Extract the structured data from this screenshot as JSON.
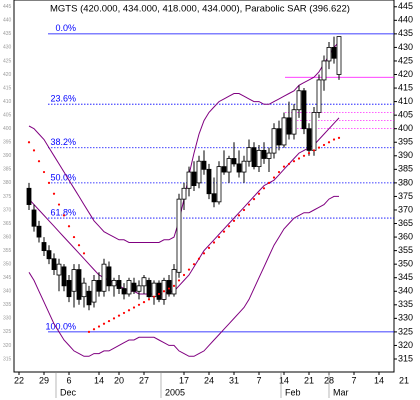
{
  "chart_data": {
    "type": "candlestick",
    "title": "MGTS (420.000, 434.000, 418.000, 434.000), Parabolic SAR (396.622)",
    "x": [
      2,
      3,
      4,
      5,
      6,
      7,
      8,
      9,
      10,
      11,
      12,
      13,
      14,
      15,
      16,
      17,
      18,
      19,
      20,
      21,
      22,
      23,
      24,
      25,
      26,
      27,
      28,
      29,
      30,
      31,
      32,
      33,
      34,
      35,
      36,
      37,
      38,
      39,
      40,
      41,
      42,
      43,
      44,
      45,
      46,
      47,
      48,
      49,
      50,
      51,
      52,
      53,
      54,
      55,
      56,
      57,
      58,
      59,
      60,
      61,
      62,
      63,
      64
    ],
    "open": [
      378,
      370,
      364,
      358,
      355,
      352,
      346,
      349,
      344,
      340,
      348,
      338,
      340,
      336,
      344,
      340,
      349,
      342,
      344,
      341,
      339,
      343,
      340,
      342,
      344,
      338,
      343,
      337,
      344,
      339,
      347,
      374,
      378,
      384,
      380,
      388,
      385,
      376,
      373,
      386,
      384,
      389,
      387,
      384,
      388,
      393,
      386,
      392,
      389,
      391,
      400,
      394,
      404,
      398,
      407,
      414,
      400,
      392,
      406,
      418,
      425,
      430,
      420
    ],
    "high": [
      380,
      372,
      366,
      360,
      357,
      354,
      352,
      350,
      346,
      350,
      350,
      345,
      342,
      346,
      347,
      352,
      351,
      345,
      346,
      343,
      345,
      345,
      344,
      346,
      345,
      344,
      344,
      345,
      346,
      350,
      376,
      380,
      386,
      388,
      390,
      392,
      387,
      382,
      388,
      392,
      390,
      395,
      392,
      390,
      396,
      395,
      394,
      395,
      393,
      402,
      403,
      406,
      410,
      409,
      416,
      415,
      402,
      408,
      420,
      427,
      432,
      434,
      434
    ],
    "low": [
      370,
      362,
      358,
      353,
      350,
      346,
      340,
      340,
      336,
      334,
      335,
      334,
      333,
      334,
      338,
      338,
      340,
      338,
      339,
      337,
      338,
      339,
      337,
      339,
      337,
      335,
      336,
      335,
      338,
      338,
      345,
      370,
      375,
      377,
      378,
      383,
      374,
      371,
      372,
      383,
      380,
      386,
      382,
      380,
      386,
      385,
      384,
      387,
      384,
      389,
      392,
      393,
      396,
      396,
      404,
      398,
      390,
      390,
      404,
      414,
      422,
      424,
      418
    ],
    "close": [
      372,
      364,
      360,
      355,
      352,
      348,
      350,
      342,
      338,
      348,
      337,
      343,
      335,
      344,
      340,
      350,
      342,
      344,
      341,
      339,
      344,
      340,
      342,
      345,
      338,
      343,
      337,
      344,
      339,
      348,
      374,
      378,
      384,
      379,
      388,
      385,
      376,
      373,
      386,
      384,
      389,
      387,
      384,
      388,
      393,
      386,
      392,
      389,
      391,
      400,
      394,
      404,
      398,
      407,
      414,
      400,
      392,
      406,
      418,
      425,
      430,
      426,
      434
    ],
    "up_color": "#ffffff",
    "down_color": "#000000",
    "bands": [
      {
        "color": "#800080",
        "values": [
          401,
          400,
          398,
          396,
          393,
          390,
          387,
          384,
          381,
          378,
          375,
          372,
          369,
          366,
          364,
          362,
          361,
          360,
          359,
          359,
          358,
          358,
          358,
          358,
          358,
          358,
          358,
          359,
          359,
          360,
          366,
          374,
          383,
          391,
          398,
          403,
          406,
          408,
          410,
          411,
          412,
          413,
          413,
          412,
          411,
          410,
          410,
          409,
          409,
          410,
          411,
          412,
          413,
          414,
          416,
          417,
          418,
          419,
          421,
          424,
          427,
          430,
          432
        ]
      },
      {
        "color": "#800080",
        "values": [
          374,
          372,
          370,
          368,
          366,
          364,
          362,
          360,
          358,
          356,
          354,
          352,
          350,
          348,
          346,
          345,
          344,
          343,
          342,
          341,
          340,
          340,
          339,
          339,
          339,
          339,
          339,
          339,
          340,
          340,
          342,
          344,
          346,
          349,
          352,
          355,
          357,
          359,
          361,
          363,
          365,
          367,
          369,
          371,
          373,
          375,
          377,
          379,
          380,
          381,
          383,
          385,
          387,
          389,
          391,
          392,
          393,
          394,
          396,
          398,
          400,
          402,
          404
        ]
      },
      {
        "color": "#800080",
        "values": [
          347,
          344,
          340,
          336,
          332,
          328,
          325,
          322,
          320,
          318,
          317,
          316,
          316,
          317,
          317,
          318,
          318,
          319,
          320,
          321,
          322,
          322,
          323,
          323,
          323,
          323,
          322,
          321,
          320,
          320,
          318,
          317,
          316,
          316,
          317,
          318,
          320,
          322,
          324,
          326,
          328,
          330,
          332,
          334,
          337,
          341,
          345,
          349,
          353,
          357,
          360,
          363,
          365,
          367,
          368,
          369,
          369,
          370,
          371,
          372,
          374,
          375,
          375
        ]
      }
    ],
    "sar": {
      "color": "#ff0000",
      "values": [
        395,
        392,
        388,
        384,
        380,
        376,
        372,
        368,
        364,
        360,
        357,
        354,
        325,
        326,
        327,
        328,
        329,
        330,
        331,
        332,
        333,
        334,
        335,
        336,
        337,
        338,
        339,
        340,
        341,
        342,
        344,
        346,
        348,
        350,
        352,
        354,
        356,
        358,
        360,
        362,
        364,
        366,
        368,
        370,
        372,
        374,
        376,
        378,
        380,
        382,
        384,
        386,
        387,
        388,
        389,
        390,
        391,
        392,
        393,
        394,
        395,
        396,
        396.622
      ]
    },
    "fib_color": "#0000ff",
    "fib_levels": [
      {
        "label": "0.0%",
        "value": 435
      },
      {
        "label": "23.6%",
        "value": 409.04
      },
      {
        "label": "38.2%",
        "value": 392.98
      },
      {
        "label": "50.0%",
        "value": 380
      },
      {
        "label": "61.8%",
        "value": 367.02
      },
      {
        "label": "100.0%",
        "value": 325
      }
    ],
    "marker_color": "#ff00ff",
    "marker_lines": [
      419,
      406,
      403,
      400
    ],
    "xlim": [
      -1,
      75
    ],
    "ylim": [
      310.2,
      447.5
    ],
    "xticks": [
      {
        "value": 0,
        "label": "22"
      },
      {
        "value": 5,
        "label": "29"
      },
      {
        "value": 10,
        "label": "6"
      },
      {
        "value": 16,
        "label": "14"
      },
      {
        "value": 20,
        "label": "20"
      },
      {
        "value": 25,
        "label": "27"
      },
      {
        "value": 33,
        "label": "17"
      },
      {
        "value": 38,
        "label": "24"
      },
      {
        "value": 43,
        "label": "31"
      },
      {
        "value": 48,
        "label": "7"
      },
      {
        "value": 53,
        "label": "14"
      },
      {
        "value": 58,
        "label": "21"
      },
      {
        "value": 62,
        "label": "28"
      },
      {
        "value": 67,
        "label": "7"
      },
      {
        "value": 72,
        "label": "14"
      },
      {
        "value": 77,
        "label": "21"
      }
    ],
    "month_labels": [
      {
        "value": 8.2,
        "label": "Dec"
      },
      {
        "value": 29.2,
        "label": "2005"
      },
      {
        "value": 53.2,
        "label": "Feb"
      },
      {
        "value": 62.8,
        "label": "Mar"
      }
    ],
    "yticks": [
      315,
      320,
      325,
      330,
      335,
      340,
      345,
      350,
      355,
      360,
      365,
      370,
      375,
      380,
      385,
      390,
      395,
      400,
      405,
      410,
      415,
      420,
      425,
      430,
      435,
      440,
      445
    ]
  }
}
